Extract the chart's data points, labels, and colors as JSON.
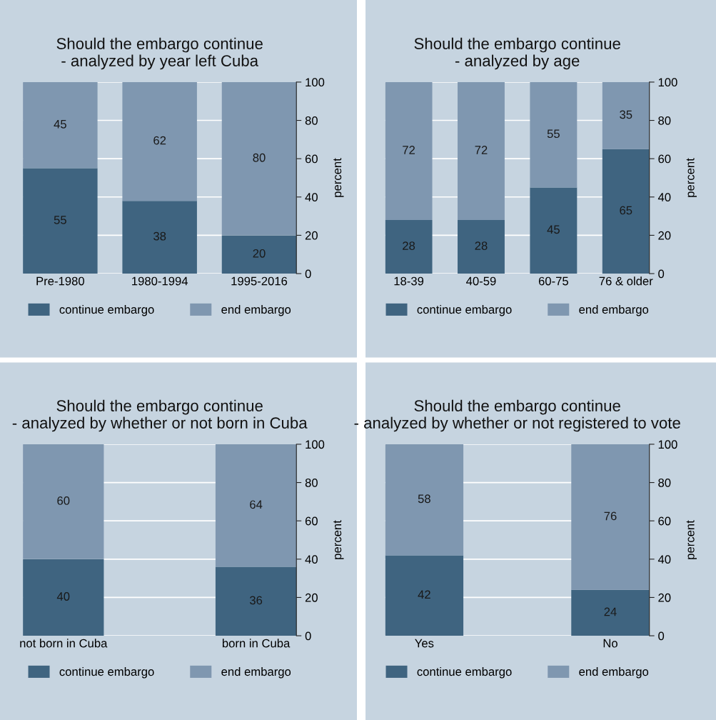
{
  "chart_data": [
    {
      "type": "bar",
      "stacked": true,
      "title": "Should the embargo continue\n- analyzed by year left Cuba",
      "ylabel": "percent",
      "categories": [
        "Pre-1980",
        "1980-1994",
        "1995-2016"
      ],
      "series": [
        {
          "name": "continue embargo",
          "color": "#3f6480",
          "values": [
            55,
            38,
            20
          ]
        },
        {
          "name": "end embargo",
          "color": "#7f97b0",
          "values": [
            45,
            62,
            80
          ]
        }
      ],
      "ylim": [
        0,
        100
      ],
      "yticks": [
        0,
        20,
        40,
        60,
        80,
        100
      ],
      "grid": "y",
      "legend": "bottom",
      "data_labels": true
    },
    {
      "type": "bar",
      "stacked": true,
      "title": "Should the embargo continue\n- analyzed by age",
      "ylabel": "percent",
      "categories": [
        "18-39",
        "40-59",
        "60-75",
        "76 & older"
      ],
      "series": [
        {
          "name": "continue embargo",
          "color": "#3f6480",
          "values": [
            28,
            28,
            45,
            65
          ]
        },
        {
          "name": "end embargo",
          "color": "#7f97b0",
          "values": [
            72,
            72,
            55,
            35
          ]
        }
      ],
      "ylim": [
        0,
        100
      ],
      "yticks": [
        0,
        20,
        40,
        60,
        80,
        100
      ],
      "grid": "y",
      "legend": "bottom",
      "data_labels": true
    },
    {
      "type": "bar",
      "stacked": true,
      "title": "Should the embargo continue\n- analyzed by whether or not born in Cuba",
      "ylabel": "percent",
      "categories": [
        "not born in Cuba",
        "born in Cuba"
      ],
      "series": [
        {
          "name": "continue embargo",
          "color": "#3f6480",
          "values": [
            40,
            36
          ]
        },
        {
          "name": "end embargo",
          "color": "#7f97b0",
          "values": [
            60,
            64
          ]
        }
      ],
      "ylim": [
        0,
        100
      ],
      "yticks": [
        0,
        20,
        40,
        60,
        80,
        100
      ],
      "grid": "y",
      "legend": "bottom",
      "data_labels": true
    },
    {
      "type": "bar",
      "stacked": true,
      "title": "Should the embargo continue\n- analyzed by whether or not registered to vote",
      "ylabel": "percent",
      "categories": [
        "Yes",
        "No"
      ],
      "series": [
        {
          "name": "continue embargo",
          "color": "#3f6480",
          "values": [
            42,
            24
          ]
        },
        {
          "name": "end embargo",
          "color": "#7f97b0",
          "values": [
            58,
            76
          ]
        }
      ],
      "ylim": [
        0,
        100
      ],
      "yticks": [
        0,
        20,
        40,
        60,
        80,
        100
      ],
      "grid": "y",
      "legend": "bottom",
      "data_labels": true
    }
  ]
}
